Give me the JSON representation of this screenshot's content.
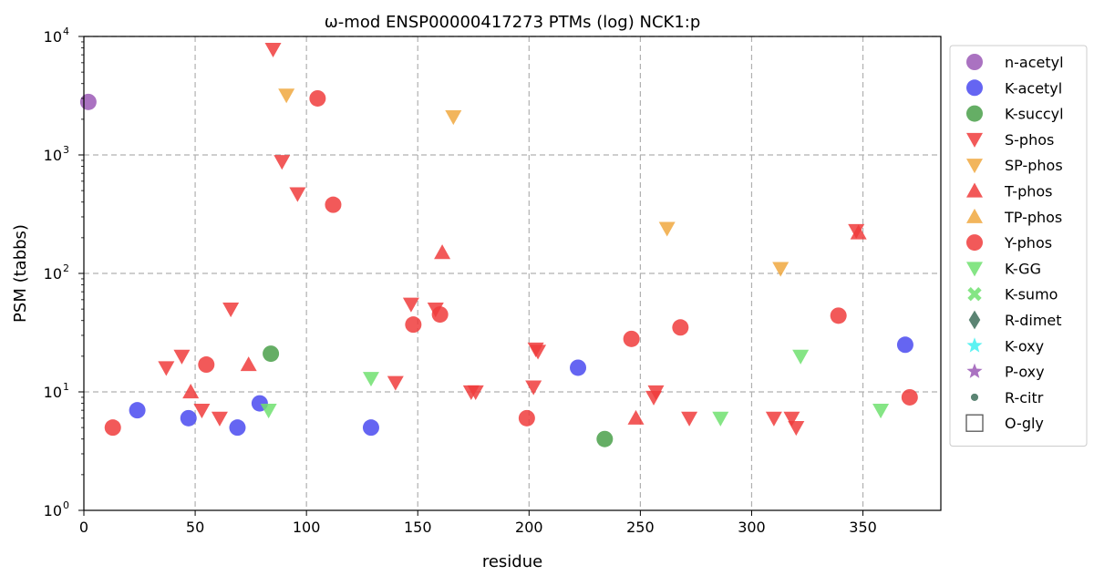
{
  "chart_data": {
    "type": "scatter",
    "title": "ω-mod ENSP00000417273 PTMs (log) NCK1:p",
    "xlabel": "residue",
    "ylabel": "PSM (tabbs)",
    "xlim": [
      0,
      385
    ],
    "ylim": [
      1,
      10000
    ],
    "yscale": "log",
    "grid": true,
    "legend_position": "outside-right",
    "x_ticks": [
      0,
      50,
      100,
      150,
      200,
      250,
      300,
      350
    ],
    "y_ticks": [
      {
        "value": 1,
        "base": "10",
        "exp": "0"
      },
      {
        "value": 10,
        "base": "10",
        "exp": "1"
      },
      {
        "value": 100,
        "base": "10",
        "exp": "2"
      },
      {
        "value": 1000,
        "base": "10",
        "exp": "3"
      },
      {
        "value": 10000,
        "base": "10",
        "exp": "4"
      }
    ],
    "series": [
      {
        "name": "n-acetyl",
        "marker": "circle",
        "color": "#9b59b6",
        "points": [
          [
            2,
            2800
          ]
        ]
      },
      {
        "name": "K-acetyl",
        "marker": "circle",
        "color": "#4a4af0",
        "points": [
          [
            24,
            7
          ],
          [
            47,
            6
          ],
          [
            69,
            5
          ],
          [
            79,
            8
          ],
          [
            129,
            5
          ],
          [
            222,
            16
          ],
          [
            369,
            25
          ]
        ]
      },
      {
        "name": "K-succyl",
        "marker": "circle",
        "color": "#4aa04a",
        "points": [
          [
            84,
            21
          ],
          [
            234,
            4
          ]
        ]
      },
      {
        "name": "S-phos",
        "marker": "triangle-down",
        "color": "#f03c3c",
        "points": [
          [
            37,
            16
          ],
          [
            44,
            20
          ],
          [
            53,
            7
          ],
          [
            61,
            6
          ],
          [
            66,
            50
          ],
          [
            85,
            7800
          ],
          [
            89,
            880
          ],
          [
            96,
            470
          ],
          [
            140,
            12
          ],
          [
            147,
            55
          ],
          [
            158,
            50
          ],
          [
            174,
            10
          ],
          [
            176,
            10
          ],
          [
            202,
            11
          ],
          [
            203,
            23
          ],
          [
            204,
            22
          ],
          [
            256,
            9
          ],
          [
            257,
            10
          ],
          [
            272,
            6
          ],
          [
            310,
            6
          ],
          [
            318,
            6
          ],
          [
            320,
            5
          ],
          [
            347,
            230
          ]
        ]
      },
      {
        "name": "SP-phos",
        "marker": "triangle-down",
        "color": "#f0a840",
        "points": [
          [
            91,
            3200
          ],
          [
            166,
            2100
          ],
          [
            262,
            240
          ],
          [
            313,
            110
          ]
        ]
      },
      {
        "name": "T-phos",
        "marker": "triangle-up",
        "color": "#f03c3c",
        "points": [
          [
            48,
            10
          ],
          [
            74,
            17
          ],
          [
            161,
            150
          ],
          [
            248,
            6
          ],
          [
            348,
            220
          ]
        ]
      },
      {
        "name": "TP-phos",
        "marker": "triangle-up",
        "color": "#f0a840",
        "points": []
      },
      {
        "name": "Y-phos",
        "marker": "circle",
        "color": "#f03c3c",
        "points": [
          [
            13,
            5
          ],
          [
            55,
            17
          ],
          [
            105,
            3000
          ],
          [
            112,
            380
          ],
          [
            148,
            37
          ],
          [
            160,
            45
          ],
          [
            199,
            6
          ],
          [
            246,
            28
          ],
          [
            268,
            35
          ],
          [
            339,
            44
          ],
          [
            371,
            9
          ]
        ]
      },
      {
        "name": "K-GG",
        "marker": "triangle-down",
        "color": "#70e070",
        "points": [
          [
            83,
            7
          ],
          [
            129,
            13
          ],
          [
            286,
            6
          ],
          [
            322,
            20
          ],
          [
            358,
            7
          ]
        ]
      },
      {
        "name": "K-sumo",
        "marker": "x",
        "color": "#70e070",
        "points": []
      },
      {
        "name": "R-dimet",
        "marker": "diamond",
        "color": "#3e6e5a",
        "points": []
      },
      {
        "name": "K-oxy",
        "marker": "star",
        "color": "#40f0f0",
        "points": []
      },
      {
        "name": "P-oxy",
        "marker": "star",
        "color": "#9b59b6",
        "points": []
      },
      {
        "name": "R-citr",
        "marker": "small-circle",
        "color": "#3e6e5a",
        "points": []
      },
      {
        "name": "O-gly",
        "marker": "square-open",
        "color": "#555555",
        "points": []
      }
    ]
  }
}
